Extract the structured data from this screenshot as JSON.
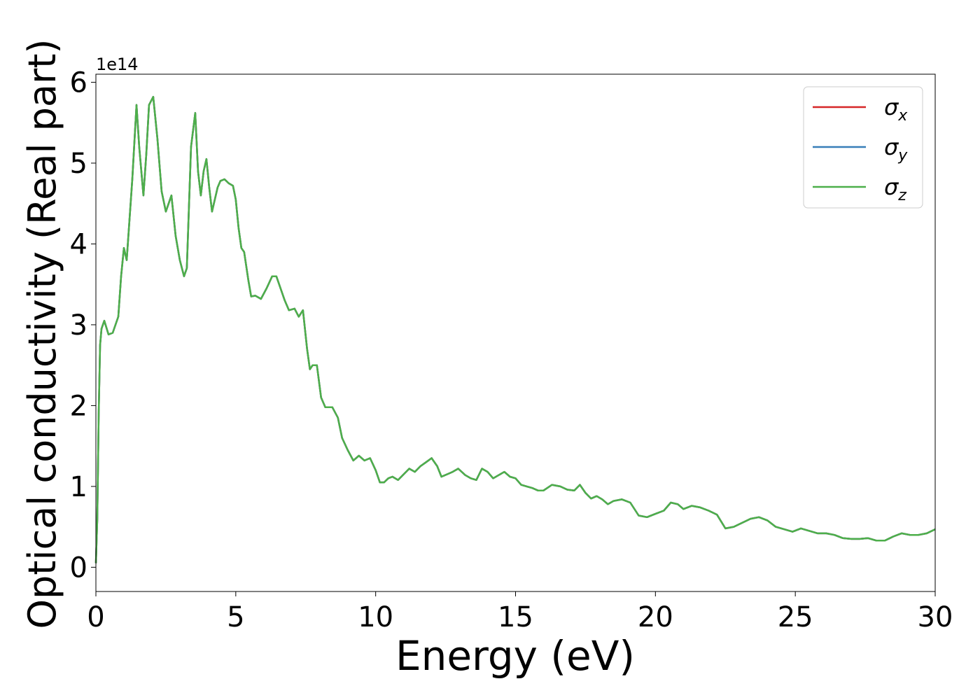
{
  "chart_data": {
    "type": "line",
    "xlabel": "Energy (eV)",
    "ylabel": "Optical conductivity (Real part)",
    "offset_label": "1e14",
    "y_scale_factor": 100000000000000.0,
    "xlim": [
      0,
      30
    ],
    "ylim": [
      -0.3,
      6.1
    ],
    "xticks": [
      0,
      5,
      10,
      15,
      20,
      25,
      30
    ],
    "yticks": [
      0,
      1,
      2,
      3,
      4,
      5,
      6
    ],
    "xtick_labels": [
      "0",
      "5",
      "10",
      "15",
      "20",
      "25",
      "30"
    ],
    "ytick_labels": [
      "0",
      "1",
      "2",
      "3",
      "4",
      "5",
      "6"
    ],
    "grid": false,
    "legend_position": "top-right",
    "x": [
      0,
      0.05,
      0.1,
      0.15,
      0.2,
      0.3,
      0.45,
      0.6,
      0.8,
      0.9,
      1.0,
      1.1,
      1.2,
      1.3,
      1.45,
      1.55,
      1.7,
      1.8,
      1.9,
      2.05,
      2.2,
      2.35,
      2.5,
      2.7,
      2.85,
      3.0,
      3.15,
      3.25,
      3.4,
      3.55,
      3.65,
      3.75,
      3.85,
      3.95,
      4.05,
      4.15,
      4.25,
      4.35,
      4.45,
      4.6,
      4.75,
      4.9,
      5.0,
      5.1,
      5.2,
      5.3,
      5.45,
      5.55,
      5.7,
      5.9,
      6.1,
      6.3,
      6.45,
      6.6,
      6.75,
      6.9,
      7.1,
      7.25,
      7.4,
      7.55,
      7.65,
      7.75,
      7.9,
      8.05,
      8.2,
      8.45,
      8.65,
      8.8,
      9.0,
      9.2,
      9.4,
      9.6,
      9.8,
      10.0,
      10.15,
      10.3,
      10.45,
      10.6,
      10.8,
      11.0,
      11.2,
      11.4,
      11.6,
      11.8,
      12.0,
      12.2,
      12.35,
      12.55,
      12.75,
      12.95,
      13.2,
      13.4,
      13.6,
      13.8,
      14.0,
      14.2,
      14.4,
      14.6,
      14.8,
      15.0,
      15.2,
      15.4,
      15.6,
      15.8,
      16.0,
      16.3,
      16.6,
      16.85,
      17.1,
      17.3,
      17.5,
      17.7,
      17.9,
      18.1,
      18.3,
      18.5,
      18.8,
      19.1,
      19.4,
      19.7,
      20.0,
      20.3,
      20.55,
      20.8,
      21.0,
      21.3,
      21.6,
      21.9,
      22.2,
      22.5,
      22.8,
      23.1,
      23.4,
      23.7,
      24.0,
      24.3,
      24.6,
      24.9,
      25.2,
      25.5,
      25.8,
      26.1,
      26.4,
      26.7,
      27.0,
      27.3,
      27.6,
      27.9,
      28.2,
      28.5,
      28.8,
      29.1,
      29.4,
      29.7,
      30.0
    ],
    "series": [
      {
        "name": "σx",
        "color": "#d62728",
        "values": [
          0.05,
          0.6,
          1.9,
          2.75,
          2.95,
          3.05,
          2.88,
          2.9,
          3.1,
          3.6,
          3.95,
          3.8,
          4.3,
          4.8,
          5.72,
          5.2,
          4.6,
          5.1,
          5.72,
          5.82,
          5.3,
          4.65,
          4.4,
          4.6,
          4.1,
          3.8,
          3.6,
          3.7,
          5.2,
          5.62,
          4.9,
          4.6,
          4.9,
          5.05,
          4.7,
          4.4,
          4.55,
          4.7,
          4.78,
          4.8,
          4.75,
          4.72,
          4.55,
          4.2,
          3.95,
          3.9,
          3.55,
          3.35,
          3.36,
          3.32,
          3.45,
          3.6,
          3.6,
          3.45,
          3.3,
          3.18,
          3.2,
          3.1,
          3.18,
          2.7,
          2.45,
          2.5,
          2.5,
          2.1,
          1.98,
          1.98,
          1.85,
          1.6,
          1.45,
          1.32,
          1.38,
          1.32,
          1.35,
          1.2,
          1.05,
          1.05,
          1.1,
          1.12,
          1.08,
          1.15,
          1.22,
          1.18,
          1.25,
          1.3,
          1.35,
          1.25,
          1.12,
          1.15,
          1.18,
          1.22,
          1.14,
          1.1,
          1.08,
          1.22,
          1.18,
          1.1,
          1.14,
          1.18,
          1.12,
          1.1,
          1.02,
          1.0,
          0.98,
          0.95,
          0.95,
          1.02,
          1.0,
          0.96,
          0.95,
          1.02,
          0.92,
          0.85,
          0.88,
          0.84,
          0.78,
          0.82,
          0.84,
          0.8,
          0.64,
          0.62,
          0.66,
          0.7,
          0.8,
          0.78,
          0.72,
          0.76,
          0.74,
          0.7,
          0.65,
          0.48,
          0.5,
          0.55,
          0.6,
          0.62,
          0.58,
          0.5,
          0.47,
          0.44,
          0.48,
          0.45,
          0.42,
          0.42,
          0.4,
          0.36,
          0.35,
          0.35,
          0.36,
          0.33,
          0.33,
          0.38,
          0.42,
          0.4,
          0.4,
          0.42,
          0.47
        ]
      },
      {
        "name": "σy",
        "color": "#377eb8",
        "values": [
          0.05,
          0.6,
          1.9,
          2.75,
          2.95,
          3.05,
          2.88,
          2.9,
          3.1,
          3.6,
          3.95,
          3.8,
          4.3,
          4.8,
          5.72,
          5.2,
          4.6,
          5.1,
          5.72,
          5.82,
          5.3,
          4.65,
          4.4,
          4.6,
          4.1,
          3.8,
          3.6,
          3.7,
          5.2,
          5.62,
          4.9,
          4.6,
          4.9,
          5.05,
          4.7,
          4.4,
          4.55,
          4.7,
          4.78,
          4.8,
          4.75,
          4.72,
          4.55,
          4.2,
          3.95,
          3.9,
          3.55,
          3.35,
          3.36,
          3.32,
          3.45,
          3.6,
          3.6,
          3.45,
          3.3,
          3.18,
          3.2,
          3.1,
          3.18,
          2.7,
          2.45,
          2.5,
          2.5,
          2.1,
          1.98,
          1.98,
          1.85,
          1.6,
          1.45,
          1.32,
          1.38,
          1.32,
          1.35,
          1.2,
          1.05,
          1.05,
          1.1,
          1.12,
          1.08,
          1.15,
          1.22,
          1.18,
          1.25,
          1.3,
          1.35,
          1.25,
          1.12,
          1.15,
          1.18,
          1.22,
          1.14,
          1.1,
          1.08,
          1.22,
          1.18,
          1.1,
          1.14,
          1.18,
          1.12,
          1.1,
          1.02,
          1.0,
          0.98,
          0.95,
          0.95,
          1.02,
          1.0,
          0.96,
          0.95,
          1.02,
          0.92,
          0.85,
          0.88,
          0.84,
          0.78,
          0.82,
          0.84,
          0.8,
          0.64,
          0.62,
          0.66,
          0.7,
          0.8,
          0.78,
          0.72,
          0.76,
          0.74,
          0.7,
          0.65,
          0.48,
          0.5,
          0.55,
          0.6,
          0.62,
          0.58,
          0.5,
          0.47,
          0.44,
          0.48,
          0.45,
          0.42,
          0.42,
          0.4,
          0.36,
          0.35,
          0.35,
          0.36,
          0.33,
          0.33,
          0.38,
          0.42,
          0.4,
          0.4,
          0.42,
          0.47
        ]
      },
      {
        "name": "σz",
        "color": "#4daf4a",
        "values": [
          0.05,
          0.6,
          1.9,
          2.75,
          2.95,
          3.05,
          2.88,
          2.9,
          3.1,
          3.6,
          3.95,
          3.8,
          4.3,
          4.8,
          5.72,
          5.2,
          4.6,
          5.1,
          5.72,
          5.82,
          5.3,
          4.65,
          4.4,
          4.6,
          4.1,
          3.8,
          3.6,
          3.7,
          5.2,
          5.62,
          4.9,
          4.6,
          4.9,
          5.05,
          4.7,
          4.4,
          4.55,
          4.7,
          4.78,
          4.8,
          4.75,
          4.72,
          4.55,
          4.2,
          3.95,
          3.9,
          3.55,
          3.35,
          3.36,
          3.32,
          3.45,
          3.6,
          3.6,
          3.45,
          3.3,
          3.18,
          3.2,
          3.1,
          3.18,
          2.7,
          2.45,
          2.5,
          2.5,
          2.1,
          1.98,
          1.98,
          1.85,
          1.6,
          1.45,
          1.32,
          1.38,
          1.32,
          1.35,
          1.2,
          1.05,
          1.05,
          1.1,
          1.12,
          1.08,
          1.15,
          1.22,
          1.18,
          1.25,
          1.3,
          1.35,
          1.25,
          1.12,
          1.15,
          1.18,
          1.22,
          1.14,
          1.1,
          1.08,
          1.22,
          1.18,
          1.1,
          1.14,
          1.18,
          1.12,
          1.1,
          1.02,
          1.0,
          0.98,
          0.95,
          0.95,
          1.02,
          1.0,
          0.96,
          0.95,
          1.02,
          0.92,
          0.85,
          0.88,
          0.84,
          0.78,
          0.82,
          0.84,
          0.8,
          0.64,
          0.62,
          0.66,
          0.7,
          0.8,
          0.78,
          0.72,
          0.76,
          0.74,
          0.7,
          0.65,
          0.48,
          0.5,
          0.55,
          0.6,
          0.62,
          0.58,
          0.5,
          0.47,
          0.44,
          0.48,
          0.45,
          0.42,
          0.42,
          0.4,
          0.36,
          0.35,
          0.35,
          0.36,
          0.33,
          0.33,
          0.38,
          0.42,
          0.4,
          0.4,
          0.42,
          0.47
        ]
      }
    ]
  }
}
